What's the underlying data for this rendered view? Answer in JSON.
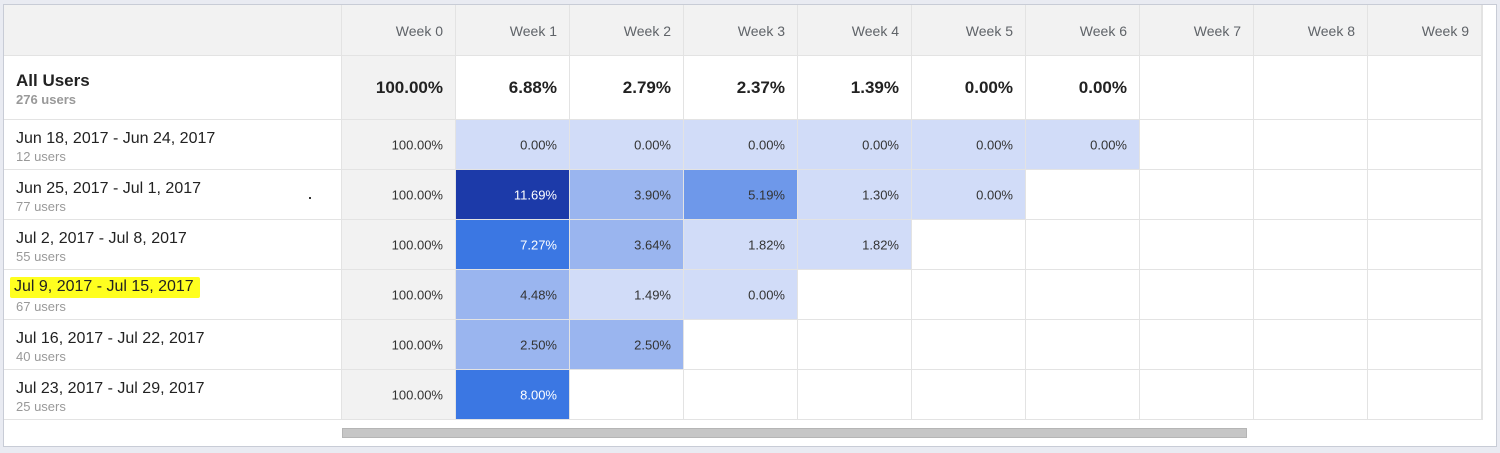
{
  "columns": [
    "Week 0",
    "Week 1",
    "Week 2",
    "Week 3",
    "Week 4",
    "Week 5",
    "Week 6",
    "Week 7",
    "Week 8",
    "Week 9"
  ],
  "summary": {
    "title": "All Users",
    "subtitle": "276 users",
    "values": [
      "100.00%",
      "6.88%",
      "2.79%",
      "2.37%",
      "1.39%",
      "0.00%",
      "0.00%"
    ]
  },
  "cohorts": [
    {
      "label": "Jun 18, 2017 - Jun 24, 2017",
      "users": "12 users",
      "highlighted": false,
      "cells": [
        {
          "text": "100.00%",
          "color": ""
        },
        {
          "text": "0.00%",
          "color": "#d1dcf8"
        },
        {
          "text": "0.00%",
          "color": "#d1dcf8"
        },
        {
          "text": "0.00%",
          "color": "#d1dcf8"
        },
        {
          "text": "0.00%",
          "color": "#d1dcf8"
        },
        {
          "text": "0.00%",
          "color": "#d1dcf8"
        },
        {
          "text": "0.00%",
          "color": "#d1dcf8"
        }
      ]
    },
    {
      "label": "Jun 25, 2017 - Jul 1, 2017",
      "users": "77 users",
      "highlighted": false,
      "cells": [
        {
          "text": "100.00%",
          "color": ""
        },
        {
          "text": "11.69%",
          "color": "#1c3aa9"
        },
        {
          "text": "3.90%",
          "color": "#9ab5ef"
        },
        {
          "text": "5.19%",
          "color": "#6e98ea"
        },
        {
          "text": "1.30%",
          "color": "#d1dcf8"
        },
        {
          "text": "0.00%",
          "color": "#d1dcf8"
        }
      ]
    },
    {
      "label": "Jul 2, 2017 - Jul 8, 2017",
      "users": "55 users",
      "highlighted": false,
      "cells": [
        {
          "text": "100.00%",
          "color": ""
        },
        {
          "text": "7.27%",
          "color": "#3b77e3"
        },
        {
          "text": "3.64%",
          "color": "#9ab5ef"
        },
        {
          "text": "1.82%",
          "color": "#d1dcf8"
        },
        {
          "text": "1.82%",
          "color": "#d1dcf8"
        }
      ]
    },
    {
      "label": "Jul 9, 2017 - Jul 15, 2017",
      "users": "67 users",
      "highlighted": true,
      "cells": [
        {
          "text": "100.00%",
          "color": ""
        },
        {
          "text": "4.48%",
          "color": "#9ab5ef"
        },
        {
          "text": "1.49%",
          "color": "#d1dcf8"
        },
        {
          "text": "0.00%",
          "color": "#d1dcf8"
        }
      ]
    },
    {
      "label": "Jul 16, 2017 - Jul 22, 2017",
      "users": "40 users",
      "highlighted": false,
      "cells": [
        {
          "text": "100.00%",
          "color": ""
        },
        {
          "text": "2.50%",
          "color": "#9ab5ef"
        },
        {
          "text": "2.50%",
          "color": "#9ab5ef"
        }
      ]
    },
    {
      "label": "Jul 23, 2017 - Jul 29, 2017",
      "users": "25 users",
      "highlighted": false,
      "cells": [
        {
          "text": "100.00%",
          "color": ""
        },
        {
          "text": "8.00%",
          "color": "#3b77e3"
        }
      ]
    }
  ],
  "colors": {
    "highlight": "#ffff1f",
    "dark_cell": "#1c3aa9",
    "strong_cell": "#3b77e3",
    "medium_cell": "#6e98ea",
    "mid_cell": "#9ab5ef",
    "light_cell": "#d1dcf8",
    "header_bg": "#f2f2f2"
  }
}
